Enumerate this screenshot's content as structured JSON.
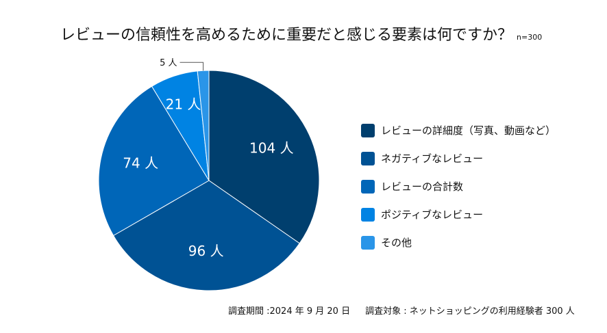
{
  "chart_data": {
    "type": "pie",
    "title": "レビューの信頼性を高めるために重要だと感じる要素は何ですか？",
    "sample_note": "n=300",
    "unit": "人",
    "categories": [
      "レビューの詳細度（写真、動画など）",
      "ネガティブなレビュー",
      "レビューの合計数",
      "ポジティブなレビュー",
      "その他"
    ],
    "values": [
      104,
      96,
      74,
      21,
      5
    ],
    "data_labels": [
      "104 人",
      "96 人",
      "74 人",
      "21 人",
      "5 人"
    ],
    "colors": [
      "#003F6E",
      "#005294",
      "#0066B8",
      "#0083E3",
      "#2A95E8"
    ],
    "legend_position": "right",
    "start_angle": "12 o'clock, clockwise"
  },
  "footer": {
    "period": "調査期間 :2024 年 9 月 20 日",
    "target": "調査対象 : ネットショッピングの利用経験者 300 人"
  }
}
